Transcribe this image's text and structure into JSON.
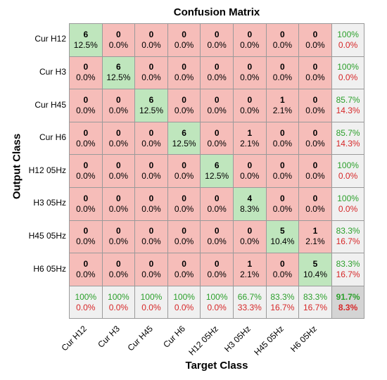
{
  "title": "Confusion Matrix",
  "xlabel": "Target Class",
  "ylabel": "Output Class",
  "colors": {
    "correct": "#bfe6bd",
    "incorrect": "#f6bdb9",
    "summary": "#f0f0f0",
    "total": "#d4d4d4",
    "good_text": "#2ca02c",
    "bad_text": "#d62728"
  },
  "chart_data": {
    "type": "heatmap",
    "title": "Confusion Matrix",
    "xlabel": "Target Class",
    "ylabel": "Output Class",
    "classes": [
      "Cur H12",
      "Cur H3",
      "Cur H45",
      "Cur H6",
      "H12 05Hz",
      "H3 05Hz",
      "H45 05Hz",
      "H6 05Hz"
    ],
    "counts": [
      [
        6,
        0,
        0,
        0,
        0,
        0,
        0,
        0
      ],
      [
        0,
        6,
        0,
        0,
        0,
        0,
        0,
        0
      ],
      [
        0,
        0,
        6,
        0,
        0,
        0,
        1,
        0
      ],
      [
        0,
        0,
        0,
        6,
        0,
        1,
        0,
        0
      ],
      [
        0,
        0,
        0,
        0,
        6,
        0,
        0,
        0
      ],
      [
        0,
        0,
        0,
        0,
        0,
        4,
        0,
        0
      ],
      [
        0,
        0,
        0,
        0,
        0,
        0,
        5,
        1
      ],
      [
        0,
        0,
        0,
        0,
        0,
        1,
        0,
        5
      ]
    ],
    "percents": [
      [
        "12.5%",
        "0.0%",
        "0.0%",
        "0.0%",
        "0.0%",
        "0.0%",
        "0.0%",
        "0.0%"
      ],
      [
        "0.0%",
        "12.5%",
        "0.0%",
        "0.0%",
        "0.0%",
        "0.0%",
        "0.0%",
        "0.0%"
      ],
      [
        "0.0%",
        "0.0%",
        "12.5%",
        "0.0%",
        "0.0%",
        "0.0%",
        "2.1%",
        "0.0%"
      ],
      [
        "0.0%",
        "0.0%",
        "0.0%",
        "12.5%",
        "0.0%",
        "2.1%",
        "0.0%",
        "0.0%"
      ],
      [
        "0.0%",
        "0.0%",
        "0.0%",
        "0.0%",
        "12.5%",
        "0.0%",
        "0.0%",
        "0.0%"
      ],
      [
        "0.0%",
        "0.0%",
        "0.0%",
        "0.0%",
        "0.0%",
        "8.3%",
        "0.0%",
        "0.0%"
      ],
      [
        "0.0%",
        "0.0%",
        "0.0%",
        "0.0%",
        "0.0%",
        "0.0%",
        "10.4%",
        "2.1%"
      ],
      [
        "0.0%",
        "0.0%",
        "0.0%",
        "0.0%",
        "0.0%",
        "2.1%",
        "0.0%",
        "10.4%"
      ]
    ],
    "row_summary": [
      [
        "100%",
        "0.0%"
      ],
      [
        "100%",
        "0.0%"
      ],
      [
        "85.7%",
        "14.3%"
      ],
      [
        "85.7%",
        "14.3%"
      ],
      [
        "100%",
        "0.0%"
      ],
      [
        "100%",
        "0.0%"
      ],
      [
        "83.3%",
        "16.7%"
      ],
      [
        "83.3%",
        "16.7%"
      ]
    ],
    "col_summary": [
      [
        "100%",
        "0.0%"
      ],
      [
        "100%",
        "0.0%"
      ],
      [
        "100%",
        "0.0%"
      ],
      [
        "100%",
        "0.0%"
      ],
      [
        "100%",
        "0.0%"
      ],
      [
        "66.7%",
        "33.3%"
      ],
      [
        "83.3%",
        "16.7%"
      ],
      [
        "83.3%",
        "16.7%"
      ]
    ],
    "total": [
      "91.7%",
      "8.3%"
    ]
  }
}
